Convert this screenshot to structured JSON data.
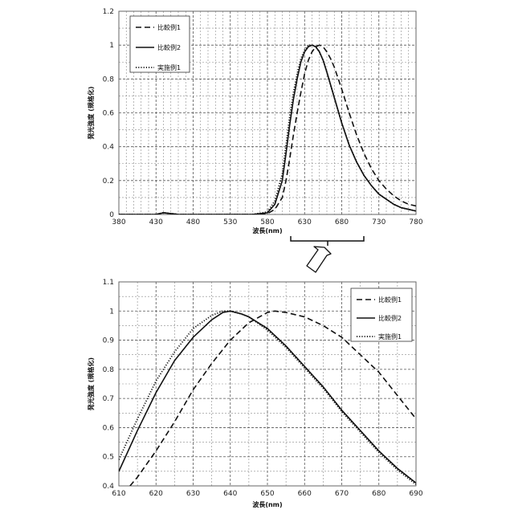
{
  "chart_data": [
    {
      "type": "line",
      "panel": "top",
      "xlabel": "波長(nm)",
      "ylabel": "発光強度 (規格化)",
      "xlim": [
        380,
        780
      ],
      "ylim": [
        0,
        1.2
      ],
      "xticks": [
        380,
        430,
        480,
        530,
        580,
        630,
        680,
        730,
        780
      ],
      "yticks": [
        0,
        0.2,
        0.4,
        0.6,
        0.8,
        1,
        1.2
      ],
      "x_minor_step": 10,
      "y_minor_step": 0.1,
      "legend": [
        "比較例1",
        "比較例2",
        "実施例1"
      ],
      "legend_position": "top-left",
      "series": [
        {
          "name": "比較例1",
          "style": "dashed",
          "x": [
            380,
            430,
            440,
            450,
            460,
            480,
            530,
            560,
            580,
            590,
            600,
            605,
            610,
            615,
            620,
            625,
            630,
            635,
            640,
            645,
            650,
            655,
            660,
            665,
            670,
            680,
            690,
            700,
            710,
            720,
            730,
            740,
            750,
            760,
            770,
            780
          ],
          "y": [
            0,
            0,
            0.01,
            0.005,
            0,
            0,
            0,
            0,
            0.005,
            0.03,
            0.1,
            0.2,
            0.33,
            0.47,
            0.6,
            0.72,
            0.83,
            0.91,
            0.96,
            0.99,
            1.0,
            0.99,
            0.96,
            0.92,
            0.87,
            0.74,
            0.6,
            0.47,
            0.36,
            0.27,
            0.2,
            0.15,
            0.11,
            0.08,
            0.06,
            0.05
          ]
        },
        {
          "name": "比較例2",
          "style": "solid",
          "x": [
            380,
            430,
            440,
            450,
            460,
            480,
            530,
            560,
            580,
            590,
            600,
            605,
            610,
            615,
            620,
            625,
            630,
            635,
            640,
            645,
            650,
            655,
            660,
            670,
            680,
            690,
            700,
            710,
            720,
            730,
            740,
            750,
            760,
            770,
            780
          ],
          "y": [
            0,
            0,
            0.01,
            0.005,
            0,
            0,
            0,
            0,
            0.01,
            0.06,
            0.2,
            0.36,
            0.53,
            0.68,
            0.8,
            0.9,
            0.96,
            0.99,
            1.0,
            0.99,
            0.96,
            0.91,
            0.84,
            0.69,
            0.54,
            0.41,
            0.31,
            0.23,
            0.17,
            0.12,
            0.09,
            0.06,
            0.04,
            0.03,
            0.02
          ]
        },
        {
          "name": "実施例1",
          "style": "dotted",
          "x": [
            380,
            430,
            440,
            450,
            460,
            480,
            530,
            560,
            580,
            590,
            600,
            605,
            610,
            615,
            620,
            625,
            630,
            635,
            640,
            645,
            650,
            655,
            660,
            670,
            680,
            690,
            700,
            710,
            720,
            730,
            740,
            750,
            760,
            770,
            780
          ],
          "y": [
            0,
            0,
            0.01,
            0.005,
            0,
            0,
            0,
            0,
            0.015,
            0.08,
            0.24,
            0.41,
            0.58,
            0.72,
            0.83,
            0.92,
            0.97,
            1.0,
            1.0,
            0.99,
            0.96,
            0.91,
            0.84,
            0.69,
            0.54,
            0.41,
            0.31,
            0.23,
            0.17,
            0.12,
            0.09,
            0.06,
            0.04,
            0.03,
            0.02
          ]
        }
      ]
    },
    {
      "type": "line",
      "panel": "bottom",
      "xlabel": "波長(nm)",
      "ylabel": "発光強度 (規格化)",
      "xlim": [
        610,
        690
      ],
      "ylim": [
        0.4,
        1.1
      ],
      "xticks": [
        610,
        620,
        630,
        640,
        650,
        660,
        670,
        680,
        690
      ],
      "yticks": [
        0.4,
        0.5,
        0.6,
        0.7,
        0.8,
        0.9,
        1,
        1.1
      ],
      "x_minor_step": 5,
      "y_minor_step": 0.05,
      "legend": [
        "比較例1",
        "比較例2",
        "実施例1"
      ],
      "legend_position": "top-right",
      "series": [
        {
          "name": "比較例1",
          "style": "dashed",
          "x": [
            613,
            615,
            620,
            625,
            630,
            635,
            640,
            645,
            650,
            652,
            655,
            660,
            665,
            670,
            675,
            680,
            685,
            690
          ],
          "y": [
            0.4,
            0.43,
            0.52,
            0.62,
            0.73,
            0.82,
            0.9,
            0.96,
            0.995,
            1.0,
            0.995,
            0.98,
            0.95,
            0.91,
            0.85,
            0.79,
            0.71,
            0.63
          ]
        },
        {
          "name": "比較例2",
          "style": "solid",
          "x": [
            610,
            615,
            620,
            625,
            630,
            635,
            638,
            640,
            643,
            645,
            650,
            655,
            660,
            665,
            670,
            675,
            680,
            685,
            690
          ],
          "y": [
            0.45,
            0.59,
            0.72,
            0.83,
            0.91,
            0.97,
            0.995,
            1.0,
            0.99,
            0.98,
            0.94,
            0.88,
            0.81,
            0.74,
            0.66,
            0.59,
            0.52,
            0.46,
            0.41
          ]
        },
        {
          "name": "実施例1",
          "style": "dotted",
          "x": [
            610,
            615,
            620,
            625,
            630,
            635,
            638,
            640,
            643,
            645,
            650,
            655,
            660,
            665,
            670,
            675,
            680,
            685,
            690
          ],
          "y": [
            0.49,
            0.63,
            0.76,
            0.86,
            0.94,
            0.985,
            1.0,
            1.0,
            0.99,
            0.98,
            0.935,
            0.875,
            0.805,
            0.735,
            0.655,
            0.585,
            0.515,
            0.455,
            0.405
          ]
        }
      ]
    }
  ]
}
